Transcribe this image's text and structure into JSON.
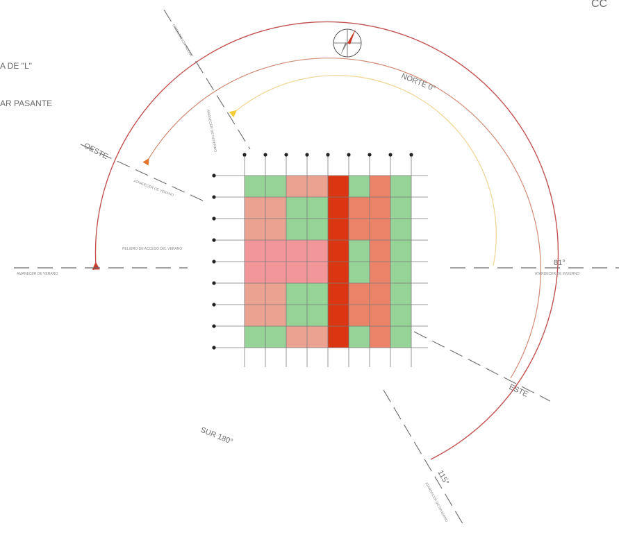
{
  "legend": {
    "line_1": "A DE \"L\"",
    "line_2": "AR PASANTE"
  },
  "corner_text": "CC",
  "directions": {
    "north": "NORTE 0°",
    "west": "OESTE",
    "east": "ESTE",
    "south": "SUR 180°"
  },
  "angles": {
    "east_set": "81°",
    "southeast": "115°"
  },
  "small_labels": {
    "left_horizon": "AMANECER DE VERANO",
    "left_center": "PELIGRO DE ACCESO DEL VERANO",
    "right_horizon": "ATARDECER DE INVIERNO",
    "top_diagonal": "ORIENTACION SOLAR",
    "top_center": "AMANECER DE INVIERNO",
    "left_diagonal": "ATARDECER DE VERANO",
    "bottom_diagonal": "ATARDECER DE INVIERNO"
  },
  "colors": {
    "green": "#96d397",
    "salmon": "#eca291",
    "pink": "#f3969a",
    "coral": "#ea8367",
    "red": "#dc3511",
    "arc_outer": "#c25252",
    "arc_middle": "#d08a74",
    "arc_inner": "#f0d79a"
  },
  "grid": {
    "rows": 8,
    "cols": 8,
    "cells": [
      [
        "green",
        "green",
        "salmon",
        "salmon",
        "red",
        "green",
        "coral",
        "green"
      ],
      [
        "salmon",
        "salmon",
        "green",
        "green",
        "red",
        "coral",
        "coral",
        "green"
      ],
      [
        "salmon",
        "salmon",
        "green",
        "green",
        "red",
        "coral",
        "coral",
        "green"
      ],
      [
        "pink",
        "pink",
        "pink",
        "pink",
        "red",
        "green",
        "coral",
        "green"
      ],
      [
        "pink",
        "pink",
        "pink",
        "pink",
        "red",
        "green",
        "coral",
        "green"
      ],
      [
        "salmon",
        "salmon",
        "green",
        "green",
        "red",
        "coral",
        "coral",
        "green"
      ],
      [
        "salmon",
        "salmon",
        "green",
        "green",
        "red",
        "coral",
        "coral",
        "green"
      ],
      [
        "green",
        "green",
        "salmon",
        "salmon",
        "red",
        "green",
        "coral",
        "green"
      ]
    ]
  }
}
